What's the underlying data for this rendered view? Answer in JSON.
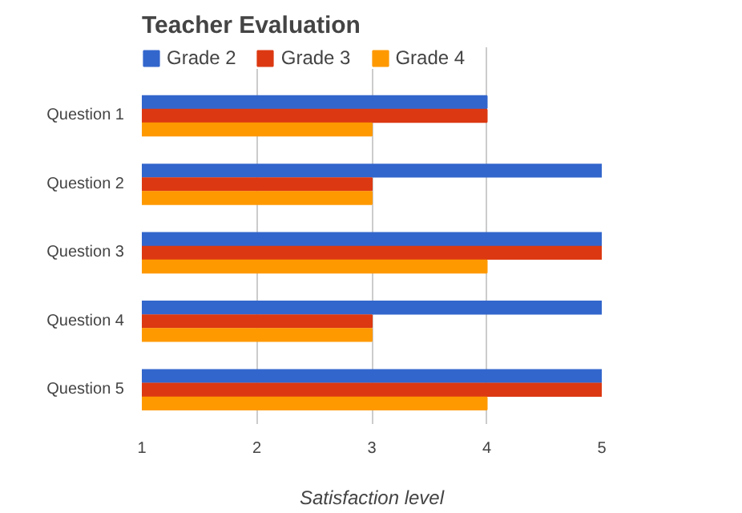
{
  "chart_data": {
    "type": "bar",
    "orientation": "horizontal",
    "title": "Teacher Evaluation",
    "xlabel": "Satisfaction level",
    "categories": [
      "Question 1",
      "Question 2",
      "Question 3",
      "Question 4",
      "Question 5"
    ],
    "series": [
      {
        "name": "Grade 2",
        "color": "#3366cc",
        "values": [
          4,
          5,
          5,
          5,
          5
        ]
      },
      {
        "name": "Grade 3",
        "color": "#dc3912",
        "values": [
          4,
          3,
          5,
          3,
          5
        ]
      },
      {
        "name": "Grade 4",
        "color": "#ff9900",
        "values": [
          3,
          3,
          4,
          3,
          4
        ]
      }
    ],
    "xlim": [
      1,
      5
    ],
    "xticks": [
      1,
      2,
      3,
      4,
      5
    ],
    "grid": "x",
    "legend": "top left"
  }
}
